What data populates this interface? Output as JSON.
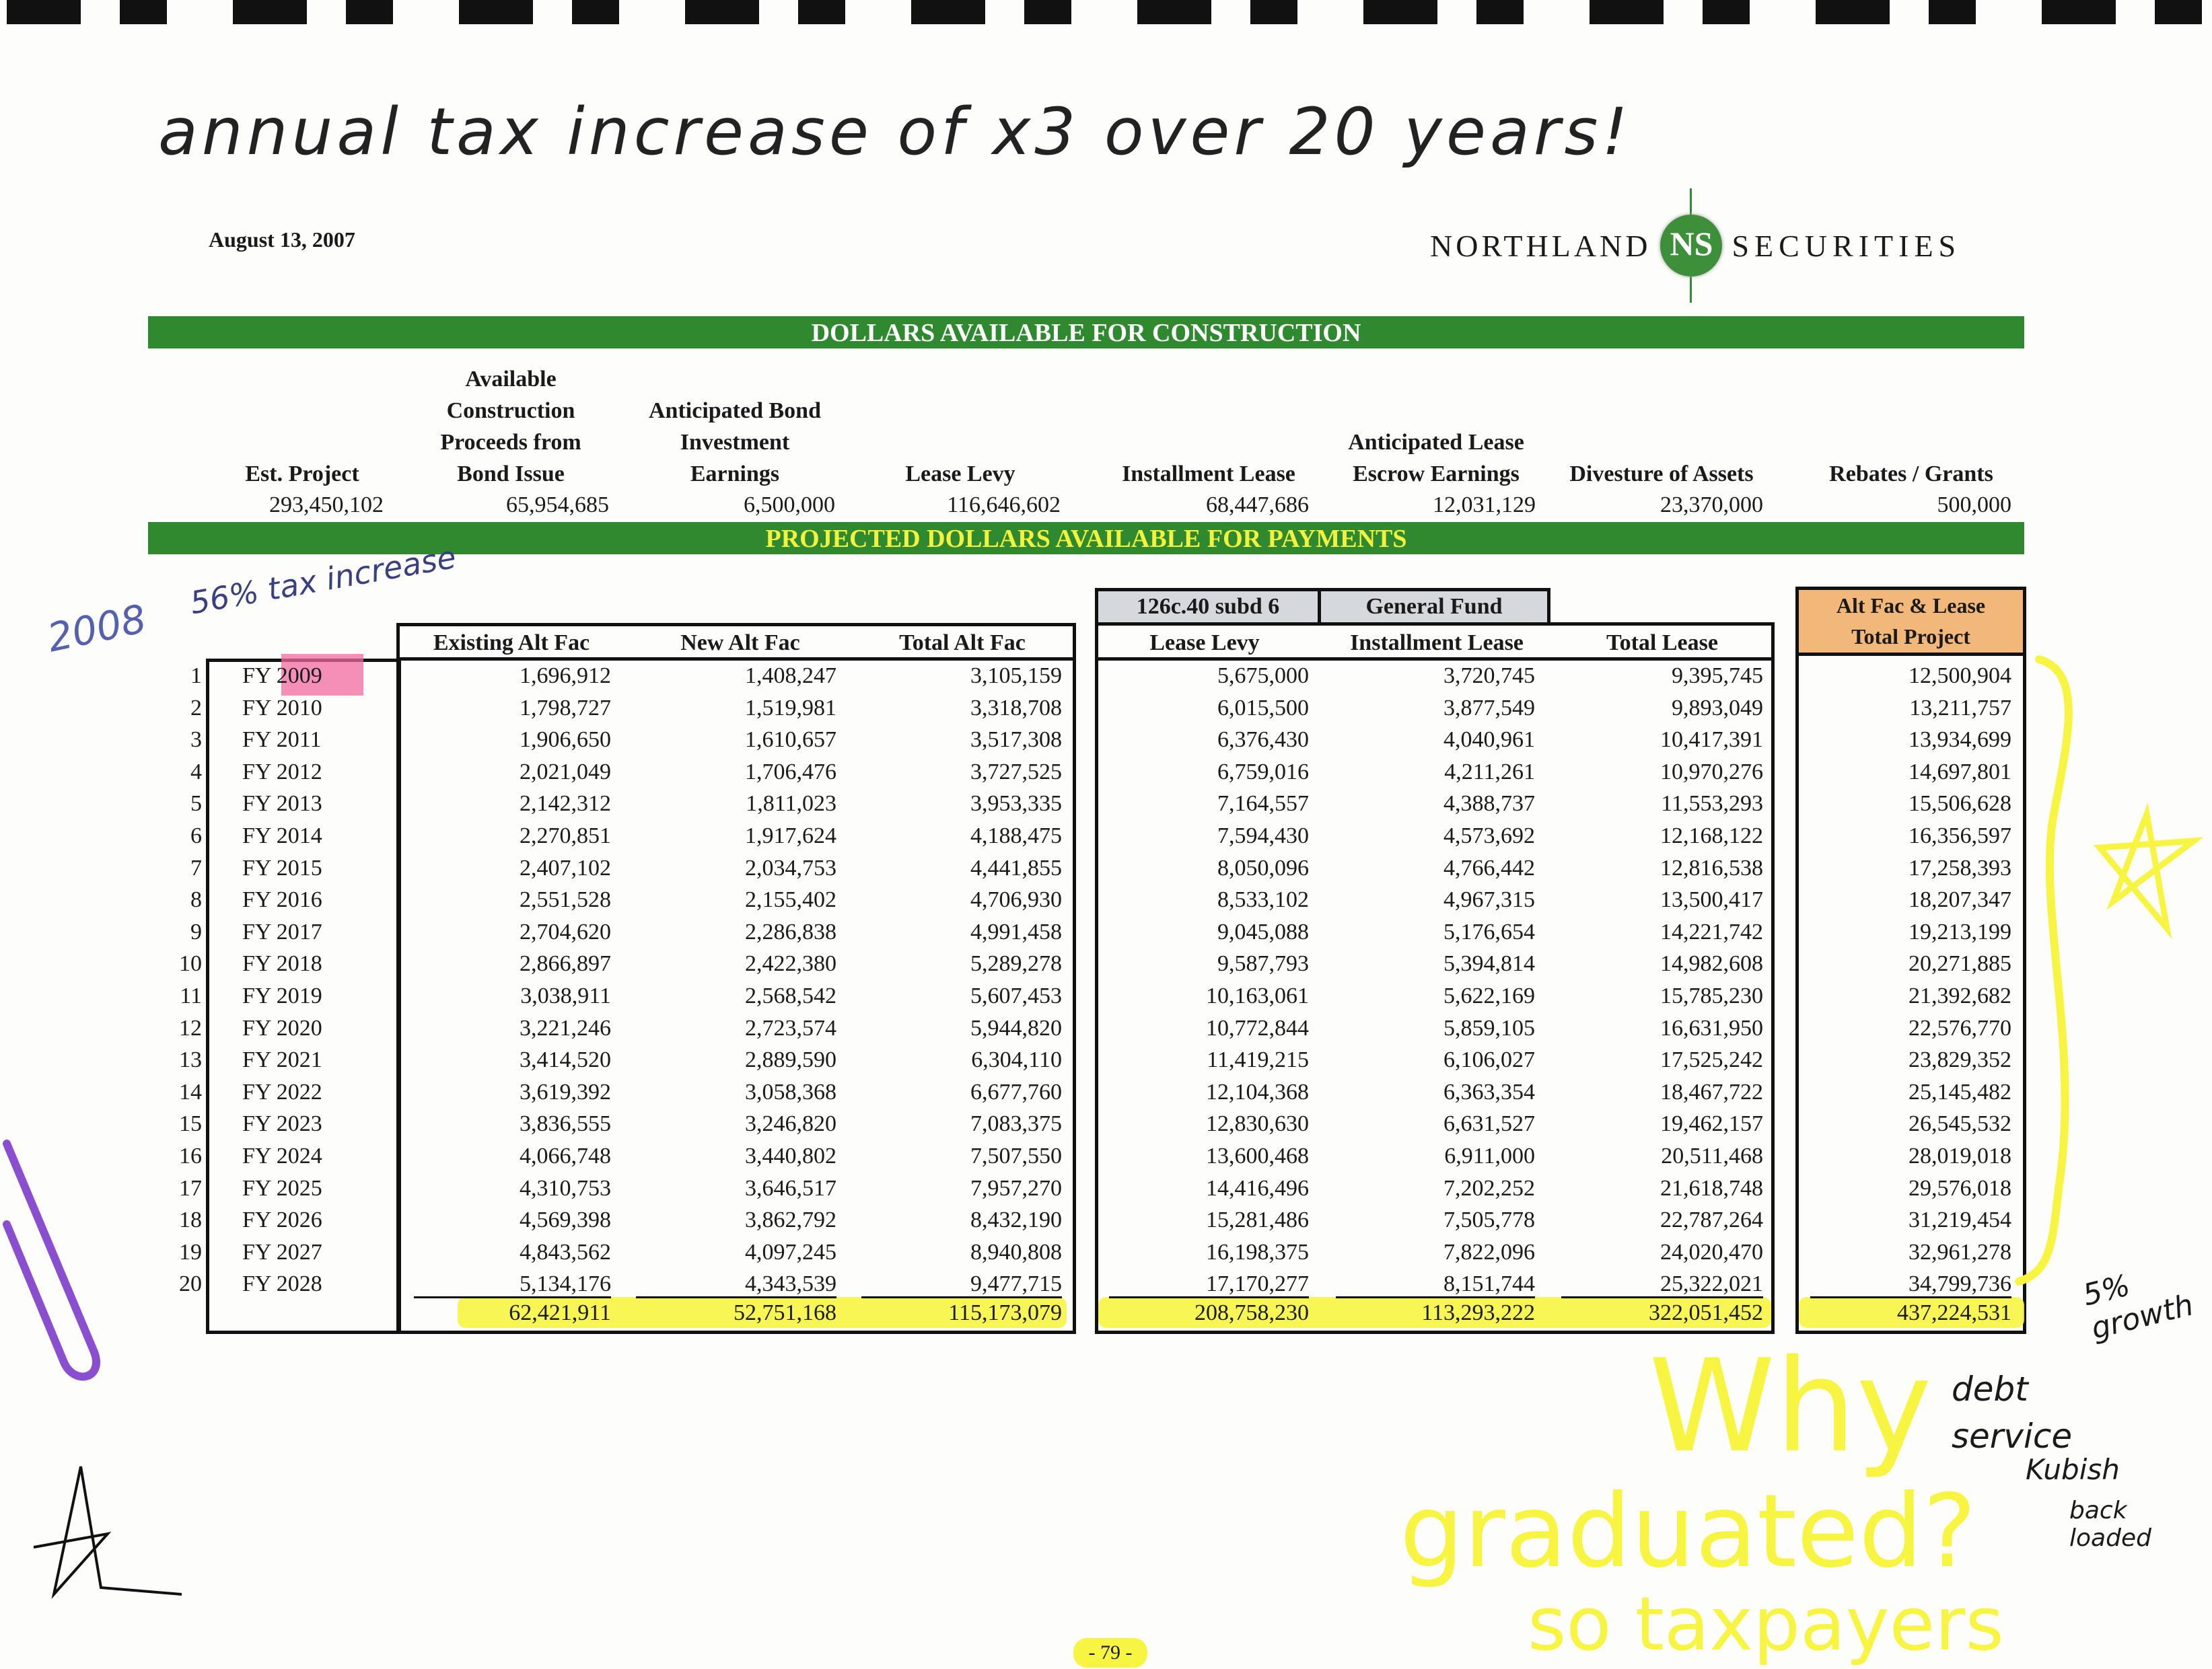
{
  "annotations": {
    "top_note": "annual tax increase of x3 over 20 years!",
    "year_note": "2008",
    "increase_note": "56% tax increase",
    "growth_note": "5% growth",
    "debt_note": "debt service",
    "name_note": "Kubish",
    "back_note": "back loaded",
    "why_note": "Why",
    "graduated_note": "graduated?",
    "taxpayers_note": "so taxpayers",
    "highlight_color": "#f7f542",
    "pink_color": "#f06aa0"
  },
  "header": {
    "date": "August 13, 2007",
    "logo_left": "NORTHLAND",
    "logo_mark": "NS",
    "logo_right": "SECURITIES",
    "brand_color": "#2f8a2f"
  },
  "construction": {
    "title": "DOLLARS AVAILABLE FOR CONSTRUCTION",
    "columns": [
      {
        "label_lines": [
          "Est. Project"
        ],
        "value": "293,450,102"
      },
      {
        "label_lines": [
          "Available",
          "Construction",
          "Proceeds from",
          "Bond Issue"
        ],
        "value": "65,954,685"
      },
      {
        "label_lines": [
          "Anticipated Bond",
          "Investment",
          "Earnings"
        ],
        "value": "6,500,000"
      },
      {
        "label_lines": [
          "Lease Levy"
        ],
        "value": "116,646,602"
      },
      {
        "label_lines": [
          "Installment Lease"
        ],
        "value": "68,447,686"
      },
      {
        "label_lines": [
          "Anticipated Lease",
          "Escrow Earnings"
        ],
        "value": "12,031,129"
      },
      {
        "label_lines": [
          "Divesture of Assets"
        ],
        "value": "23,370,000"
      },
      {
        "label_lines": [
          "Rebates / Grants"
        ],
        "value": "500,000"
      }
    ]
  },
  "payments": {
    "title": "PROJECTED DOLLARS AVAILABLE FOR PAYMENTS",
    "group_126c": "126c.40 subd 6",
    "group_general": "General Fund",
    "project_header_1": "Alt Fac & Lease",
    "project_header_2": "Total Project",
    "columns": [
      "Existing Alt Fac",
      "New Alt Fac",
      "Total Alt Fac",
      "Lease Levy",
      "Installment Lease",
      "Total Lease"
    ],
    "rows": [
      [
        "1",
        "FY 2009",
        "1,696,912",
        "1,408,247",
        "3,105,159",
        "5,675,000",
        "3,720,745",
        "9,395,745",
        "12,500,904"
      ],
      [
        "2",
        "FY 2010",
        "1,798,727",
        "1,519,981",
        "3,318,708",
        "6,015,500",
        "3,877,549",
        "9,893,049",
        "13,211,757"
      ],
      [
        "3",
        "FY 2011",
        "1,906,650",
        "1,610,657",
        "3,517,308",
        "6,376,430",
        "4,040,961",
        "10,417,391",
        "13,934,699"
      ],
      [
        "4",
        "FY 2012",
        "2,021,049",
        "1,706,476",
        "3,727,525",
        "6,759,016",
        "4,211,261",
        "10,970,276",
        "14,697,801"
      ],
      [
        "5",
        "FY 2013",
        "2,142,312",
        "1,811,023",
        "3,953,335",
        "7,164,557",
        "4,388,737",
        "11,553,293",
        "15,506,628"
      ],
      [
        "6",
        "FY 2014",
        "2,270,851",
        "1,917,624",
        "4,188,475",
        "7,594,430",
        "4,573,692",
        "12,168,122",
        "16,356,597"
      ],
      [
        "7",
        "FY 2015",
        "2,407,102",
        "2,034,753",
        "4,441,855",
        "8,050,096",
        "4,766,442",
        "12,816,538",
        "17,258,393"
      ],
      [
        "8",
        "FY 2016",
        "2,551,528",
        "2,155,402",
        "4,706,930",
        "8,533,102",
        "4,967,315",
        "13,500,417",
        "18,207,347"
      ],
      [
        "9",
        "FY 2017",
        "2,704,620",
        "2,286,838",
        "4,991,458",
        "9,045,088",
        "5,176,654",
        "14,221,742",
        "19,213,199"
      ],
      [
        "10",
        "FY 2018",
        "2,866,897",
        "2,422,380",
        "5,289,278",
        "9,587,793",
        "5,394,814",
        "14,982,608",
        "20,271,885"
      ],
      [
        "11",
        "FY 2019",
        "3,038,911",
        "2,568,542",
        "5,607,453",
        "10,163,061",
        "5,622,169",
        "15,785,230",
        "21,392,682"
      ],
      [
        "12",
        "FY 2020",
        "3,221,246",
        "2,723,574",
        "5,944,820",
        "10,772,844",
        "5,859,105",
        "16,631,950",
        "22,576,770"
      ],
      [
        "13",
        "FY 2021",
        "3,414,520",
        "2,889,590",
        "6,304,110",
        "11,419,215",
        "6,106,027",
        "17,525,242",
        "23,829,352"
      ],
      [
        "14",
        "FY 2022",
        "3,619,392",
        "3,058,368",
        "6,677,760",
        "12,104,368",
        "6,363,354",
        "18,467,722",
        "25,145,482"
      ],
      [
        "15",
        "FY 2023",
        "3,836,555",
        "3,246,820",
        "7,083,375",
        "12,830,630",
        "6,631,527",
        "19,462,157",
        "26,545,532"
      ],
      [
        "16",
        "FY 2024",
        "4,066,748",
        "3,440,802",
        "7,507,550",
        "13,600,468",
        "6,911,000",
        "20,511,468",
        "28,019,018"
      ],
      [
        "17",
        "FY 2025",
        "4,310,753",
        "3,646,517",
        "7,957,270",
        "14,416,496",
        "7,202,252",
        "21,618,748",
        "29,576,018"
      ],
      [
        "18",
        "FY 2026",
        "4,569,398",
        "3,862,792",
        "8,432,190",
        "15,281,486",
        "7,505,778",
        "22,787,264",
        "31,219,454"
      ],
      [
        "19",
        "FY 2027",
        "4,843,562",
        "4,097,245",
        "8,940,808",
        "16,198,375",
        "7,822,096",
        "24,020,470",
        "32,961,278"
      ],
      [
        "20",
        "FY 2028",
        "5,134,176",
        "4,343,539",
        "9,477,715",
        "17,170,277",
        "8,151,744",
        "25,322,021",
        "34,799,736"
      ]
    ],
    "totals": [
      "62,421,911",
      "52,751,168",
      "115,173,079",
      "208,758,230",
      "113,293,222",
      "322,051,452",
      "437,224,531"
    ]
  },
  "footer": {
    "page_number": "- 79 -"
  }
}
